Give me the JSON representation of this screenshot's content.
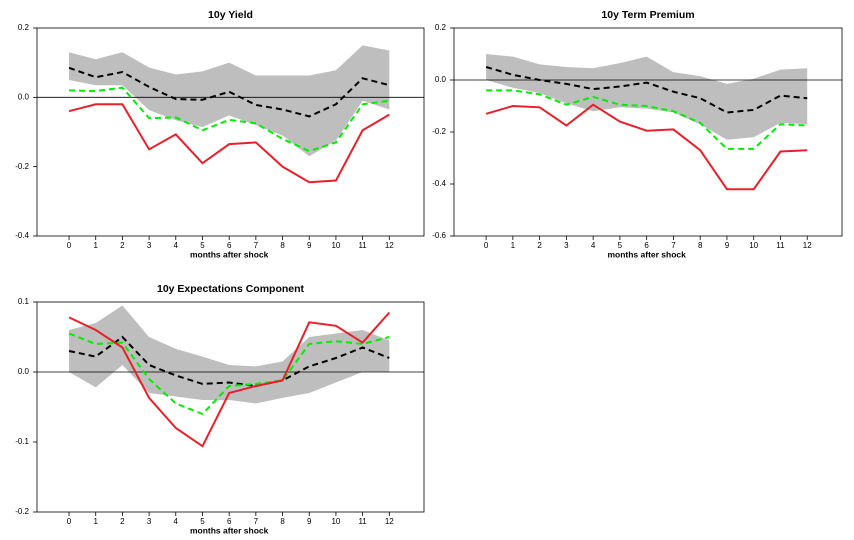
{
  "chart_data": [
    {
      "type": "line",
      "title": "10y Yield",
      "xlabel": "months after shock",
      "x": [
        0,
        1,
        2,
        3,
        4,
        5,
        6,
        7,
        8,
        9,
        10,
        11,
        12
      ],
      "xlim": [
        -1.2,
        13.3
      ],
      "xticks": [
        0,
        1,
        2,
        3,
        4,
        5,
        6,
        7,
        8,
        9,
        10,
        11,
        12
      ],
      "ylim": [
        -0.4,
        0.2
      ],
      "yticks": [
        -0.4,
        -0.2,
        {
          "value": 0,
          "label": "0.0"
        },
        0.2
      ],
      "hline": 0,
      "band": {
        "color": "#bebebe",
        "upper": [
          0.13,
          0.11,
          0.13,
          0.086,
          0.066,
          0.075,
          0.1,
          0.063,
          0.063,
          0.063,
          0.078,
          0.15,
          0.135
        ],
        "lower": [
          0.05,
          0.035,
          0.035,
          -0.037,
          -0.066,
          -0.086,
          -0.052,
          -0.08,
          -0.11,
          -0.17,
          -0.125,
          -0.01,
          -0.035
        ]
      },
      "series": [
        {
          "color": "#000000",
          "dashed": true,
          "values": [
            0.085,
            0.058,
            0.073,
            0.03,
            -0.005,
            -0.007,
            0.016,
            -0.022,
            -0.035,
            -0.055,
            -0.02,
            0.055,
            0.035
          ]
        },
        {
          "color": "#00ee00",
          "dashed": true,
          "values": [
            0.02,
            0.018,
            0.028,
            -0.06,
            -0.058,
            -0.095,
            -0.065,
            -0.075,
            -0.12,
            -0.155,
            -0.13,
            -0.02,
            -0.01
          ]
        },
        {
          "color": "#e8202a",
          "dashed": false,
          "values": [
            -0.04,
            -0.02,
            -0.02,
            -0.15,
            -0.107,
            -0.19,
            -0.135,
            -0.13,
            -0.2,
            -0.245,
            -0.24,
            -0.095,
            -0.05
          ]
        }
      ]
    },
    {
      "type": "line",
      "title": "10y Term Premium",
      "xlabel": "months after shock",
      "x": [
        0,
        1,
        2,
        3,
        4,
        5,
        6,
        7,
        8,
        9,
        10,
        11,
        12
      ],
      "xlim": [
        -1.2,
        13.3
      ],
      "xticks": [
        0,
        1,
        2,
        3,
        4,
        5,
        6,
        7,
        8,
        9,
        10,
        11,
        12
      ],
      "ylim": [
        -0.6,
        0.2
      ],
      "yticks": [
        -0.6,
        -0.4,
        -0.2,
        {
          "value": 0,
          "label": "0.0"
        },
        0.2
      ],
      "hline": 0,
      "band": {
        "color": "#bebebe",
        "upper": [
          0.1,
          0.09,
          0.06,
          0.05,
          0.045,
          0.065,
          0.09,
          0.03,
          0.015,
          -0.015,
          0.005,
          0.04,
          0.045
        ],
        "lower": [
          0.0,
          -0.03,
          -0.05,
          -0.09,
          -0.12,
          -0.105,
          -0.11,
          -0.125,
          -0.17,
          -0.23,
          -0.22,
          -0.165,
          -0.17
        ]
      },
      "series": [
        {
          "color": "#000000",
          "dashed": true,
          "values": [
            0.05,
            0.02,
            0.0,
            -0.015,
            -0.035,
            -0.025,
            -0.01,
            -0.045,
            -0.07,
            -0.125,
            -0.115,
            -0.06,
            -0.07
          ]
        },
        {
          "color": "#00ee00",
          "dashed": true,
          "values": [
            -0.04,
            -0.04,
            -0.055,
            -0.095,
            -0.065,
            -0.095,
            -0.1,
            -0.12,
            -0.165,
            -0.265,
            -0.265,
            -0.17,
            -0.175
          ]
        },
        {
          "color": "#e8202a",
          "dashed": false,
          "values": [
            -0.13,
            -0.1,
            -0.105,
            -0.175,
            -0.095,
            -0.16,
            -0.195,
            -0.19,
            -0.27,
            -0.42,
            -0.42,
            -0.275,
            -0.27
          ]
        }
      ]
    },
    {
      "type": "line",
      "title": "10y Expectations Component",
      "xlabel": "months after shock",
      "x": [
        0,
        1,
        2,
        3,
        4,
        5,
        6,
        7,
        8,
        9,
        10,
        11,
        12
      ],
      "xlim": [
        -1.2,
        13.3
      ],
      "xticks": [
        0,
        1,
        2,
        3,
        4,
        5,
        6,
        7,
        8,
        9,
        10,
        11,
        12
      ],
      "ylim": [
        -0.2,
        0.1
      ],
      "yticks": [
        -0.2,
        -0.1,
        {
          "value": 0,
          "label": "0.0"
        },
        0.1
      ],
      "hline": 0,
      "band": {
        "color": "#bebebe",
        "upper": [
          0.06,
          0.07,
          0.095,
          0.05,
          0.033,
          0.022,
          0.01,
          0.008,
          0.015,
          0.05,
          0.055,
          0.06,
          0.045
        ],
        "lower": [
          0.0,
          -0.022,
          0.01,
          -0.03,
          -0.035,
          -0.04,
          -0.04,
          -0.045,
          -0.037,
          -0.03,
          -0.015,
          0.0,
          0.0
        ]
      },
      "series": [
        {
          "color": "#000000",
          "dashed": true,
          "values": [
            0.03,
            0.022,
            0.05,
            0.01,
            -0.005,
            -0.017,
            -0.015,
            -0.02,
            -0.012,
            0.008,
            0.02,
            0.035,
            0.02
          ]
        },
        {
          "color": "#00ee00",
          "dashed": true,
          "values": [
            0.055,
            0.04,
            0.042,
            -0.01,
            -0.045,
            -0.06,
            -0.02,
            -0.017,
            -0.012,
            0.04,
            0.044,
            0.04,
            0.05
          ]
        },
        {
          "color": "#e8202a",
          "dashed": false,
          "values": [
            0.078,
            0.06,
            0.035,
            -0.037,
            -0.08,
            -0.106,
            -0.03,
            -0.02,
            -0.012,
            0.071,
            0.066,
            0.042,
            0.085
          ]
        }
      ]
    }
  ]
}
